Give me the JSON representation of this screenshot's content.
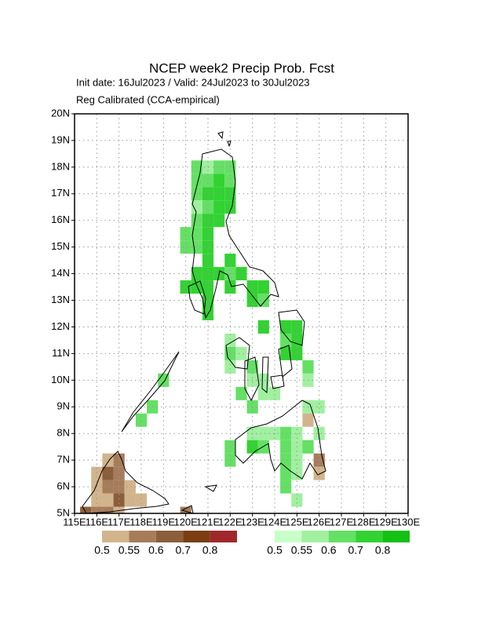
{
  "chart_data": {
    "type": "gridmap",
    "title": "NCEP week2 Precip Prob. Fcst",
    "subtitle": "Init date: 16Jul2023 / Valid: 24Jul2023 to 30Jul2023",
    "annotation": "Reg Calibrated (CCA-empirical)",
    "xlim": [
      115,
      130
    ],
    "ylim": [
      5,
      20
    ],
    "cell_size": 0.5,
    "grid": true,
    "xticks": [
      {
        "value": 115,
        "label": "115E"
      },
      {
        "value": 116,
        "label": "116E"
      },
      {
        "value": 117,
        "label": "117E"
      },
      {
        "value": 118,
        "label": "118E"
      },
      {
        "value": 119,
        "label": "119E"
      },
      {
        "value": 120,
        "label": "120E"
      },
      {
        "value": 121,
        "label": "121E"
      },
      {
        "value": 122,
        "label": "122E"
      },
      {
        "value": 123,
        "label": "123E"
      },
      {
        "value": 124,
        "label": "124E"
      },
      {
        "value": 125,
        "label": "125E"
      },
      {
        "value": 126,
        "label": "126E"
      },
      {
        "value": 127,
        "label": "127E"
      },
      {
        "value": 128,
        "label": "128E"
      },
      {
        "value": 129,
        "label": "129E"
      },
      {
        "value": 130,
        "label": "130E"
      }
    ],
    "yticks": [
      {
        "value": 5,
        "label": "5N"
      },
      {
        "value": 6,
        "label": "6N"
      },
      {
        "value": 7,
        "label": "7N"
      },
      {
        "value": 8,
        "label": "8N"
      },
      {
        "value": 9,
        "label": "9N"
      },
      {
        "value": 10,
        "label": "10N"
      },
      {
        "value": 11,
        "label": "11N"
      },
      {
        "value": 12,
        "label": "12N"
      },
      {
        "value": 13,
        "label": "13N"
      },
      {
        "value": 14,
        "label": "14N"
      },
      {
        "value": 15,
        "label": "15N"
      },
      {
        "value": 16,
        "label": "16N"
      },
      {
        "value": 17,
        "label": "17N"
      },
      {
        "value": 18,
        "label": "18N"
      },
      {
        "value": 19,
        "label": "19N"
      },
      {
        "value": 20,
        "label": "20N"
      }
    ],
    "layers": [
      {
        "levels": [
          0.5,
          0.55,
          0.6,
          0.7,
          0.8
        ],
        "colors": [
          "#d2b48c",
          "#a67c5b",
          "#8b5e3c",
          "#7a3e10",
          "#a0282a"
        ],
        "lon": [
          116.5,
          117.0,
          116.0,
          116.5,
          117.0,
          116.0,
          116.5,
          117.0,
          117.5,
          116.0,
          116.5,
          117.0,
          117.5,
          118.0,
          115.5,
          116.0,
          116.5,
          117.0,
          120.0,
          125.5,
          125.5,
          125.5,
          126.0,
          126.0
        ],
        "lat": [
          7.0,
          7.0,
          6.5,
          6.5,
          6.5,
          6.0,
          6.0,
          6.0,
          6.0,
          5.5,
          5.5,
          5.5,
          5.5,
          5.5,
          5.0,
          5.0,
          5.0,
          5.0,
          5.0,
          9.0,
          8.5,
          7.5,
          7.0,
          6.5
        ],
        "values": [
          0.5,
          0.55,
          0.5,
          0.6,
          0.55,
          0.5,
          0.55,
          0.55,
          0.5,
          0.5,
          0.5,
          0.6,
          0.5,
          0.5,
          0.6,
          0.55,
          0.55,
          0.5,
          0.55,
          0.5,
          0.5,
          0.5,
          0.55,
          0.5
        ]
      },
      {
        "levels": [
          0.5,
          0.55,
          0.6,
          0.7,
          0.8
        ],
        "colors": [
          "#c8ffc8",
          "#a0f0a0",
          "#64e064",
          "#32d232",
          "#14c014"
        ],
        "lon": [
          120.5,
          121.0,
          121.5,
          122.0,
          120.5,
          121.0,
          121.5,
          122.0,
          120.5,
          121.0,
          121.5,
          122.0,
          120.5,
          121.0,
          121.5,
          122.0,
          120.5,
          121.0,
          121.5,
          120.0,
          120.5,
          121.0,
          120.0,
          120.5,
          121.0,
          121.0,
          122.0,
          120.5,
          121.0,
          121.5,
          122.0,
          122.5,
          120.0,
          120.5,
          121.0,
          122.0,
          123.0,
          123.5,
          121.0,
          123.0,
          123.5,
          121.0,
          123.5,
          124.5,
          125.0,
          122.0,
          124.5,
          125.0,
          122.0,
          122.5,
          124.5,
          125.0,
          122.0,
          123.0,
          125.5,
          123.0,
          123.5,
          125.5,
          122.5,
          123.5,
          124.0,
          123.0,
          125.5,
          126.0,
          123.0,
          123.5,
          124.0,
          124.5,
          125.0,
          126.0,
          122.0,
          123.0,
          123.5,
          124.5,
          125.0,
          125.5,
          122.0,
          124.5,
          125.0,
          124.5,
          125.0,
          124.5,
          125.0,
          118.5,
          118.0,
          119.0
        ],
        "lat": [
          18.0,
          18.0,
          18.0,
          18.0,
          17.5,
          17.5,
          17.5,
          17.5,
          17.0,
          17.0,
          17.0,
          17.0,
          16.5,
          16.5,
          16.5,
          16.5,
          16.0,
          16.0,
          16.0,
          15.5,
          15.5,
          15.5,
          15.0,
          15.0,
          15.0,
          14.5,
          14.5,
          14.0,
          14.0,
          14.0,
          14.0,
          14.0,
          13.5,
          13.5,
          13.5,
          13.5,
          13.5,
          13.5,
          13.0,
          13.0,
          13.0,
          12.5,
          12.0,
          12.0,
          12.0,
          11.5,
          11.5,
          11.5,
          11.0,
          11.0,
          11.0,
          11.0,
          10.5,
          10.5,
          10.5,
          10.0,
          10.0,
          10.0,
          9.5,
          9.5,
          9.5,
          9.0,
          9.0,
          9.0,
          8.0,
          8.0,
          8.0,
          8.0,
          8.0,
          8.0,
          7.5,
          7.5,
          7.5,
          7.5,
          7.5,
          7.5,
          7.0,
          7.0,
          7.0,
          6.5,
          6.5,
          6.0,
          5.5,
          9.0,
          8.5,
          10.0
        ],
        "values": [
          0.6,
          0.55,
          0.6,
          0.6,
          0.6,
          0.6,
          0.7,
          0.6,
          0.6,
          0.7,
          0.7,
          0.7,
          0.55,
          0.6,
          0.7,
          0.7,
          0.6,
          0.7,
          0.7,
          0.6,
          0.6,
          0.7,
          0.6,
          0.6,
          0.7,
          0.7,
          0.7,
          0.7,
          0.7,
          0.7,
          0.6,
          0.7,
          0.7,
          0.7,
          0.7,
          0.7,
          0.7,
          0.7,
          0.7,
          0.7,
          0.6,
          0.7,
          0.7,
          0.7,
          0.7,
          0.55,
          0.6,
          0.7,
          0.6,
          0.55,
          0.7,
          0.7,
          0.55,
          0.6,
          0.6,
          0.55,
          0.55,
          0.55,
          0.6,
          0.55,
          0.55,
          0.6,
          0.55,
          0.55,
          0.55,
          0.55,
          0.55,
          0.6,
          0.55,
          0.55,
          0.6,
          0.7,
          0.6,
          0.6,
          0.55,
          0.6,
          0.6,
          0.6,
          0.55,
          0.6,
          0.55,
          0.6,
          0.55,
          0.6,
          0.6,
          0.6
        ]
      }
    ]
  }
}
